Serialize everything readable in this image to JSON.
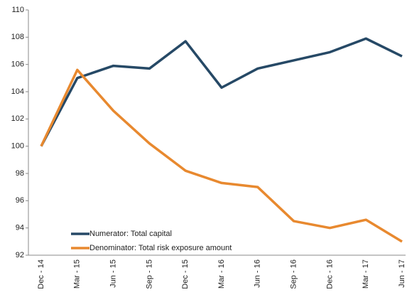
{
  "chart_data": {
    "type": "line",
    "categories": [
      "Dec - 14",
      "Mar - 15",
      "Jun - 15",
      "Sep - 15",
      "Dec - 15",
      "Mar - 16",
      "Jun - 16",
      "Sep - 16",
      "Dec - 16",
      "Mar - 17",
      "Jun - 17"
    ],
    "series": [
      {
        "name": "Numerator: Total capital",
        "color": "#264966",
        "values": [
          100,
          105.0,
          105.9,
          105.7,
          107.7,
          104.3,
          105.7,
          106.3,
          106.9,
          107.9,
          106.6
        ]
      },
      {
        "name": "Denominator: Total risk exposure amount",
        "color": "#e8892f",
        "values": [
          100,
          105.6,
          102.6,
          100.2,
          98.2,
          97.3,
          97.0,
          94.5,
          94.0,
          94.6,
          93.0
        ]
      }
    ],
    "ylim": [
      92,
      110
    ],
    "yticks": [
      92,
      94,
      96,
      98,
      100,
      102,
      104,
      106,
      108,
      110
    ],
    "grid": false,
    "legend": "lower-left"
  }
}
